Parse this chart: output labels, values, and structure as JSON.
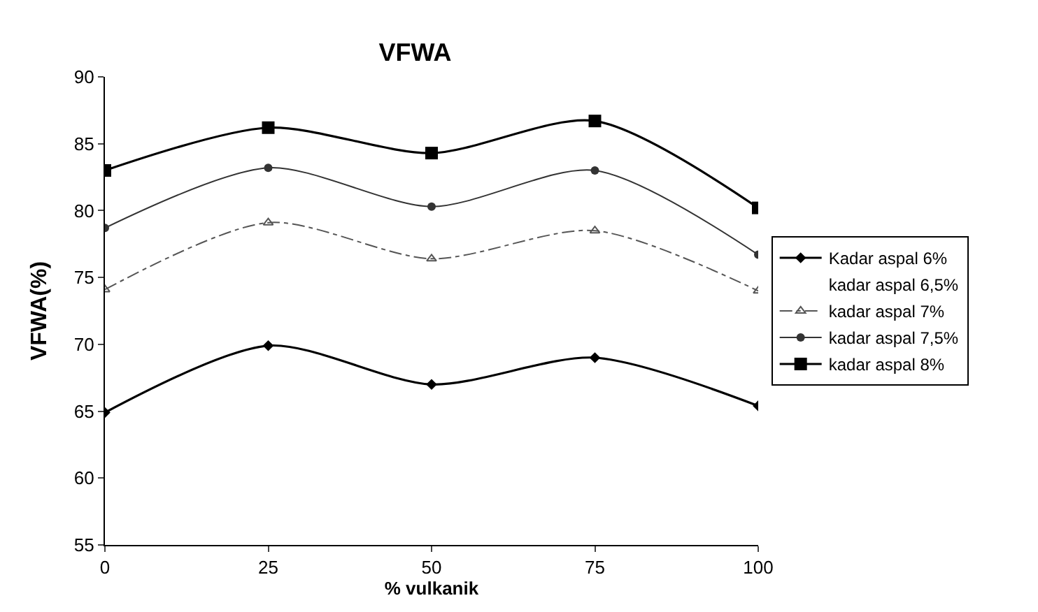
{
  "chart_data": {
    "type": "line",
    "title": "VFWA",
    "xlabel": "% vulkanik",
    "ylabel": "VFWA(%)",
    "x": [
      0,
      25,
      50,
      75,
      100
    ],
    "series": [
      {
        "name": "Kadar aspal 6%",
        "color": "#000000",
        "values": [
          64.9,
          69.9,
          67.0,
          69.0,
          65.4
        ],
        "marker": "diamond",
        "line_style": "solid"
      },
      {
        "name": "kadar aspal 6,5%",
        "values": [
          null,
          null,
          null,
          null,
          null
        ],
        "marker": "none",
        "line_style": "solid"
      },
      {
        "name": "kadar aspal 7%",
        "color": "#555555",
        "values": [
          74.1,
          79.1,
          76.4,
          78.5,
          74.0
        ],
        "marker": "triangle",
        "line_style": "dashed"
      },
      {
        "name": "kadar aspal 7,5%",
        "color": "#333333",
        "values": [
          78.7,
          83.2,
          80.3,
          83.0,
          76.7
        ],
        "marker": "circle",
        "line_style": "solid"
      },
      {
        "name": "kadar aspal 8%",
        "color": "#000000",
        "values": [
          83.0,
          86.2,
          84.3,
          86.7,
          80.2
        ],
        "marker": "square",
        "line_style": "solid"
      }
    ],
    "xlim": [
      0,
      100
    ],
    "xticks": [
      0,
      25,
      50,
      75,
      100
    ],
    "ylim": [
      55,
      90
    ],
    "yticks": [
      55,
      60,
      65,
      70,
      75,
      80,
      85,
      90
    ],
    "grid": false,
    "legend": "right"
  }
}
